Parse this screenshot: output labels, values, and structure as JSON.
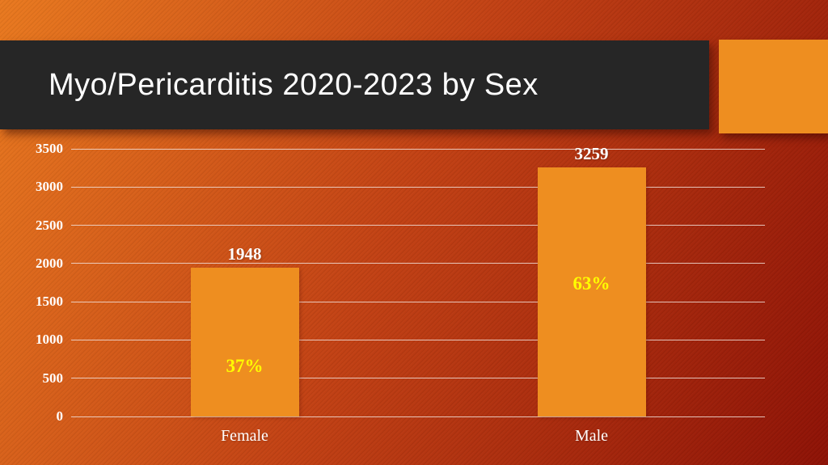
{
  "slide": {
    "title": "Myo/Pericarditis 2020-2023 by Sex"
  },
  "chart_data": {
    "type": "bar",
    "title": "Myo/Pericarditis 2020-2023 by Sex",
    "categories": [
      "Female",
      "Male"
    ],
    "values": [
      1948,
      3259
    ],
    "bar_value_labels": [
      "1948",
      "3259"
    ],
    "bar_pct_labels": [
      "37%",
      "63%"
    ],
    "pct_label_y": [
      660,
      1730
    ],
    "xlabel": "",
    "ylabel": "",
    "ylim": [
      0,
      3500
    ],
    "yticks": [
      0,
      500,
      1000,
      1500,
      2000,
      2500,
      3000,
      3500
    ],
    "grid": "horizontal",
    "legend": "none",
    "colors": {
      "bar": "#ee8e20",
      "value_label": "#ffffff",
      "pct_label": "#ffff00",
      "tick_label": "#ffffff",
      "gridline": "#f0ddd6"
    }
  },
  "theme": {
    "background_top_left": "#e9791f",
    "background_mid": "#c24114",
    "background_bottom_right": "#8e1206",
    "title_bar": "#262626",
    "title_color": "#ffffff",
    "accent_square": "#ee8e20"
  }
}
